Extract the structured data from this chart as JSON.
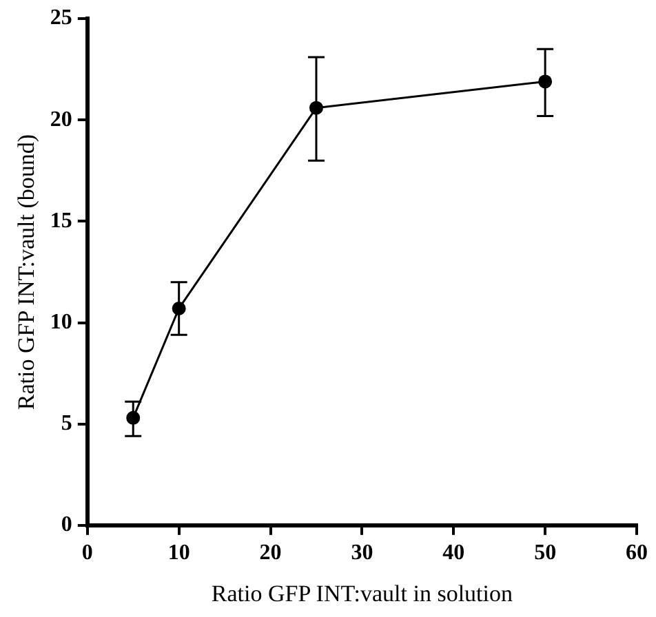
{
  "chart_data": {
    "type": "line",
    "xlabel": "Ratio GFP INT:vault in solution",
    "ylabel": "Ratio GFP INT:vault (bound)",
    "x": [
      5,
      10,
      25,
      50
    ],
    "series": [
      {
        "color": "#000000",
        "values": [
          5.3,
          10.7,
          20.6,
          21.9
        ],
        "errors": [
          [
            4.4,
            6.1
          ],
          [
            9.4,
            12.0
          ],
          [
            18.0,
            23.1
          ],
          [
            20.2,
            23.5
          ]
        ]
      }
    ],
    "xlim": [
      0,
      60
    ],
    "xticks": [
      0,
      10,
      20,
      30,
      40,
      50,
      60
    ],
    "ylim": [
      0,
      25
    ],
    "yticks": [
      0,
      5,
      10,
      15,
      20,
      25
    ],
    "grid": false,
    "legend": false,
    "marker": "circle",
    "line_style": "solid"
  }
}
